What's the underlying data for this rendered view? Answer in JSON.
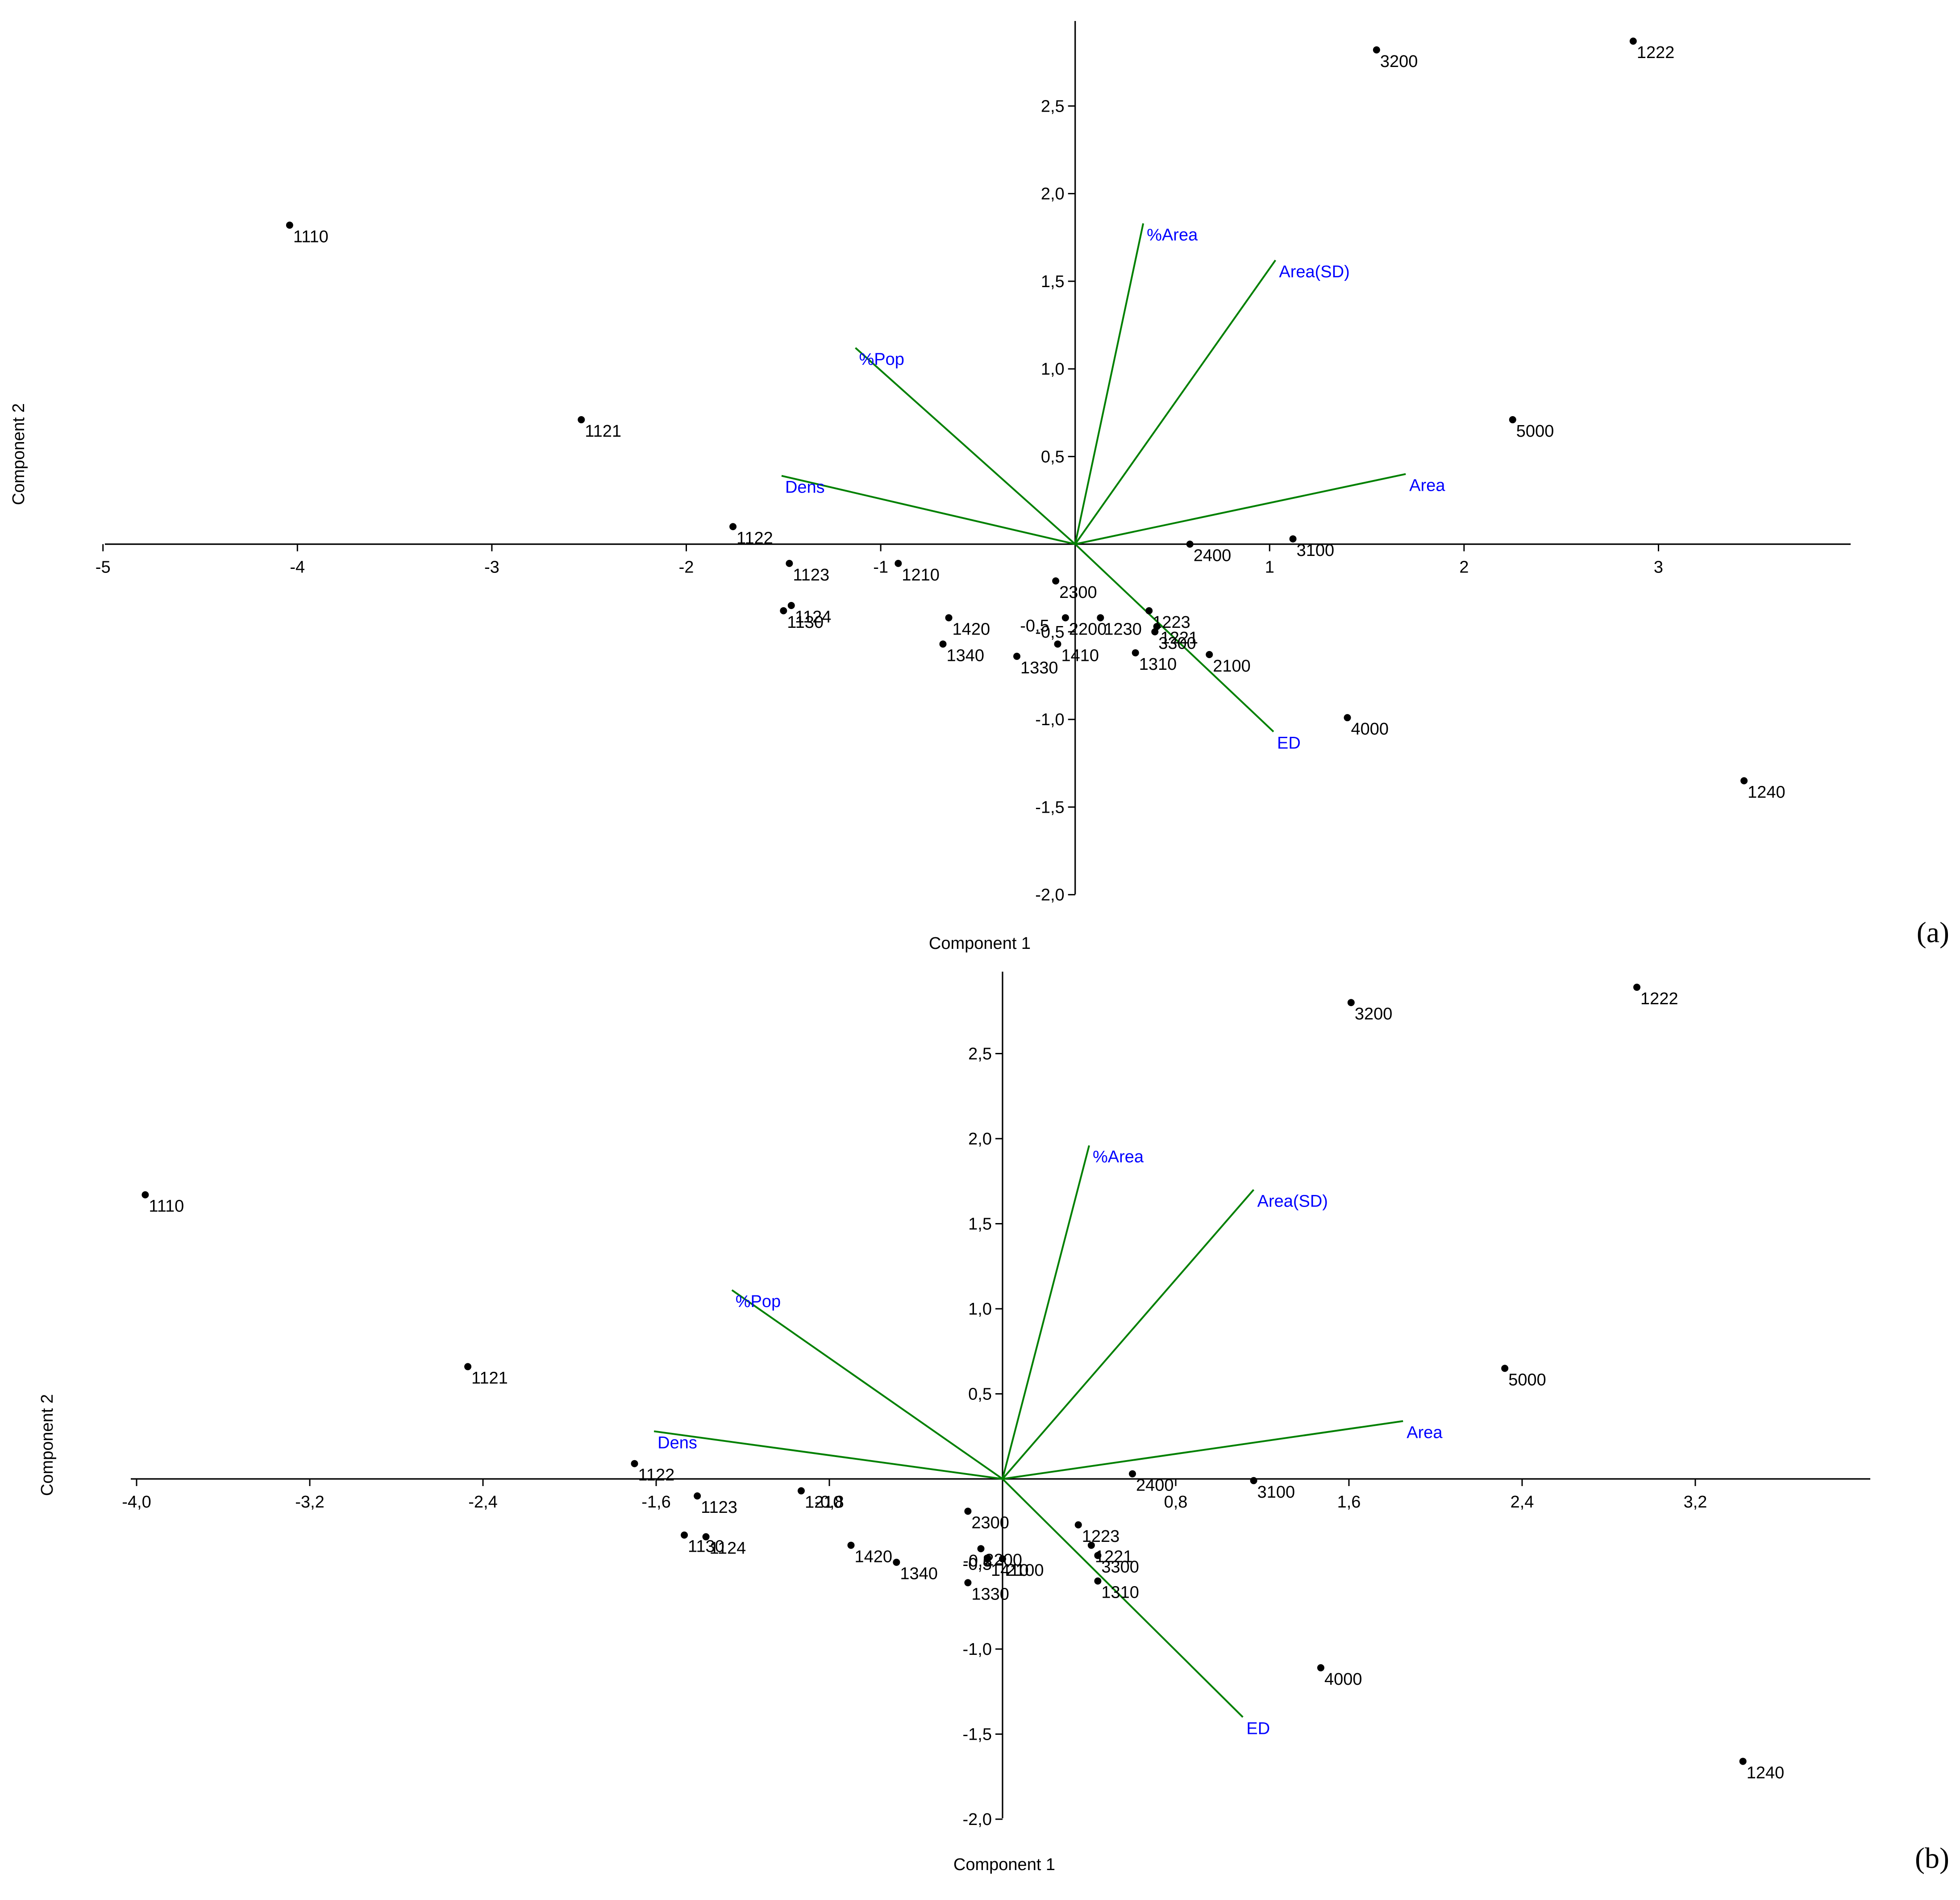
{
  "chart_data": [
    {
      "type": "scatter",
      "panel_label": "(a)",
      "xlabel": "Component 1",
      "ylabel": "Component 2",
      "x_range": [
        -5,
        4
      ],
      "y_range": [
        -2.0,
        3.0
      ],
      "x_ticks": [
        -5,
        -4,
        -3,
        -2,
        -1,
        1,
        2,
        3
      ],
      "x_tick_labels": [
        "-5",
        "-4",
        "-3",
        "-2",
        "-1",
        "1",
        "2",
        "3"
      ],
      "y_ticks": [
        2.5,
        2.0,
        1.5,
        1.0,
        0.5,
        -0.5,
        -1.0,
        -1.5,
        -2.0
      ],
      "y_tick_labels": [
        "2,5",
        "2,0",
        "1,5",
        "1,0",
        "0,5",
        "-0,5",
        "-1,0",
        "-1,5",
        "-2,0"
      ],
      "point_color": "#000000",
      "loading_color": "#008000",
      "loading_label_color": "#0000ff",
      "points": [
        {
          "label": "1110",
          "x": -4.04,
          "y": 1.82
        },
        {
          "label": "1121",
          "x": -2.54,
          "y": 0.71
        },
        {
          "label": "1122",
          "x": -1.76,
          "y": 0.1
        },
        {
          "label": "1123",
          "x": -1.47,
          "y": -0.11
        },
        {
          "label": "1124",
          "x": -1.46,
          "y": -0.35
        },
        {
          "label": "1130",
          "x": -1.5,
          "y": -0.38
        },
        {
          "label": "1210",
          "x": -0.91,
          "y": -0.11
        },
        {
          "label": "1420",
          "x": -0.65,
          "y": -0.42
        },
        {
          "label": "1340",
          "x": -0.68,
          "y": -0.57
        },
        {
          "label": "1330",
          "x": -0.3,
          "y": -0.64
        },
        {
          "label": "2300",
          "x": -0.1,
          "y": -0.21
        },
        {
          "label": "2200",
          "x": -0.05,
          "y": -0.42
        },
        {
          "label": "1410",
          "x": -0.09,
          "y": -0.57
        },
        {
          "label": "1230",
          "x": 0.13,
          "y": -0.42
        },
        {
          "label": "1223",
          "x": 0.38,
          "y": -0.38
        },
        {
          "label": "1221",
          "x": 0.42,
          "y": -0.47
        },
        {
          "label": "3300",
          "x": 0.41,
          "y": -0.5
        },
        {
          "label": "1310",
          "x": 0.31,
          "y": -0.62
        },
        {
          "label": "2100",
          "x": 0.69,
          "y": -0.63
        },
        {
          "label": "2400",
          "x": 0.59,
          "y": 0.0
        },
        {
          "label": "3100",
          "x": 1.12,
          "y": 0.03
        },
        {
          "label": "4000",
          "x": 1.4,
          "y": -0.99
        },
        {
          "label": "5000",
          "x": 2.25,
          "y": 0.71
        },
        {
          "label": "3200",
          "x": 1.55,
          "y": 2.82
        },
        {
          "label": "1222",
          "x": 2.87,
          "y": 2.87
        },
        {
          "label": "1240",
          "x": 3.44,
          "y": -1.35
        }
      ],
      "loadings": [
        {
          "label": "%Area",
          "x": 0.35,
          "y": 1.83
        },
        {
          "label": "Area(SD)",
          "x": 1.03,
          "y": 1.62
        },
        {
          "label": "%Pop",
          "x": -1.13,
          "y": 1.12
        },
        {
          "label": "Dens",
          "x": -1.51,
          "y": 0.39
        },
        {
          "label": "Area",
          "x": 1.7,
          "y": 0.4
        },
        {
          "label": "ED",
          "x": 1.02,
          "y": -1.07
        }
      ],
      "inline_tick_label": "-0,5"
    },
    {
      "type": "scatter",
      "panel_label": "(b)",
      "xlabel": "Component 1",
      "ylabel": "Component 2",
      "x_range": [
        -4.0,
        4.0
      ],
      "y_range": [
        -2.0,
        3.0
      ],
      "x_ticks": [
        -4.0,
        -3.2,
        -2.4,
        -1.6,
        -0.8,
        0.8,
        1.6,
        2.4,
        3.2
      ],
      "x_tick_labels": [
        "-4,0",
        "-3,2",
        "-2,4",
        "-1,6",
        "-0,8",
        "0,8",
        "1,6",
        "2,4",
        "3,2"
      ],
      "y_ticks": [
        2.5,
        2.0,
        1.5,
        1.0,
        0.5,
        -0.5,
        -1.0,
        -1.5,
        -2.0
      ],
      "y_tick_labels": [
        "2,5",
        "2,0",
        "1,5",
        "1,0",
        "0,5",
        "-0,5",
        "-1,0",
        "-1,5",
        "-2,0"
      ],
      "point_color": "#000000",
      "loading_color": "#008000",
      "loading_label_color": "#0000ff",
      "points": [
        {
          "label": "1110",
          "x": -3.96,
          "y": 1.67
        },
        {
          "label": "1121",
          "x": -2.47,
          "y": 0.66
        },
        {
          "label": "1122",
          "x": -1.7,
          "y": 0.09
        },
        {
          "label": "1123",
          "x": -1.41,
          "y": -0.1
        },
        {
          "label": "1130",
          "x": -1.47,
          "y": -0.33
        },
        {
          "label": "1124",
          "x": -1.37,
          "y": -0.34
        },
        {
          "label": "1210",
          "x": -0.93,
          "y": -0.07
        },
        {
          "label": "1420",
          "x": -0.7,
          "y": -0.39
        },
        {
          "label": "1340",
          "x": -0.49,
          "y": -0.49
        },
        {
          "label": "1330",
          "x": -0.16,
          "y": -0.61
        },
        {
          "label": "2300",
          "x": -0.16,
          "y": -0.19
        },
        {
          "label": "2200",
          "x": -0.1,
          "y": -0.41
        },
        {
          "label": "1410",
          "x": -0.07,
          "y": -0.47
        },
        {
          "label": "2100",
          "x": 0.0,
          "y": -0.47
        },
        {
          "label": "1223",
          "x": 0.35,
          "y": -0.27
        },
        {
          "label": "1221",
          "x": 0.41,
          "y": -0.39
        },
        {
          "label": "3300",
          "x": 0.44,
          "y": -0.45
        },
        {
          "label": "1310",
          "x": 0.44,
          "y": -0.6
        },
        {
          "label": "2400",
          "x": 0.6,
          "y": 0.03
        },
        {
          "label": "3100",
          "x": 1.16,
          "y": -0.01
        },
        {
          "label": "4000",
          "x": 1.47,
          "y": -1.11
        },
        {
          "label": "5000",
          "x": 2.32,
          "y": 0.65
        },
        {
          "label": "3200",
          "x": 1.61,
          "y": 2.8
        },
        {
          "label": "1222",
          "x": 2.93,
          "y": 2.89
        },
        {
          "label": "1240",
          "x": 3.42,
          "y": -1.66
        }
      ],
      "loadings": [
        {
          "label": "%Area",
          "x": 0.4,
          "y": 1.96
        },
        {
          "label": "Area(SD)",
          "x": 1.16,
          "y": 1.7
        },
        {
          "label": "%Pop",
          "x": -1.25,
          "y": 1.11
        },
        {
          "label": "Dens",
          "x": -1.61,
          "y": 0.28
        },
        {
          "label": "Area",
          "x": 1.85,
          "y": 0.34
        },
        {
          "label": "ED",
          "x": 1.11,
          "y": -1.4
        }
      ],
      "inline_tick_label": "-0,8"
    }
  ]
}
